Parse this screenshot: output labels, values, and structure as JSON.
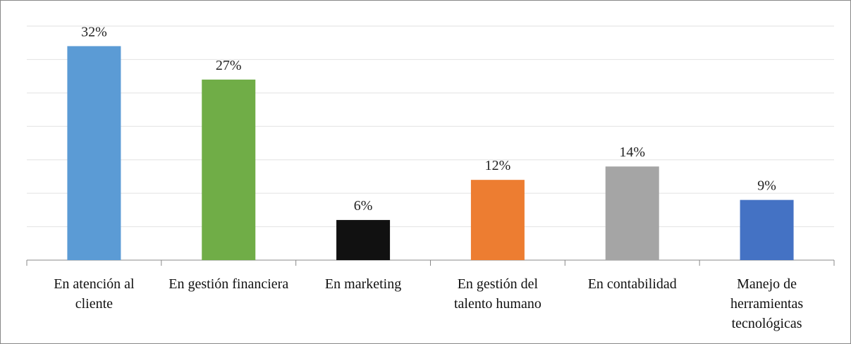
{
  "chart_data": {
    "type": "bar",
    "categories": [
      "En atención al cliente",
      "En gestión financiera",
      "En marketing",
      "En gestión del talento humano",
      "En contabilidad",
      "Manejo de herramientas tecnológicas"
    ],
    "values": [
      32,
      27,
      6,
      12,
      14,
      9
    ],
    "value_labels": [
      "32%",
      "27%",
      "6%",
      "12%",
      "14%",
      "9%"
    ],
    "colors": [
      "#5b9bd5",
      "#70ad47",
      "#111111",
      "#ed7d31",
      "#a5a5a5",
      "#4472c4"
    ],
    "ylim": [
      0,
      35
    ],
    "yticks": [
      0,
      5,
      10,
      15,
      20,
      25,
      30,
      35
    ],
    "grid": true,
    "ytick_labels": false
  }
}
